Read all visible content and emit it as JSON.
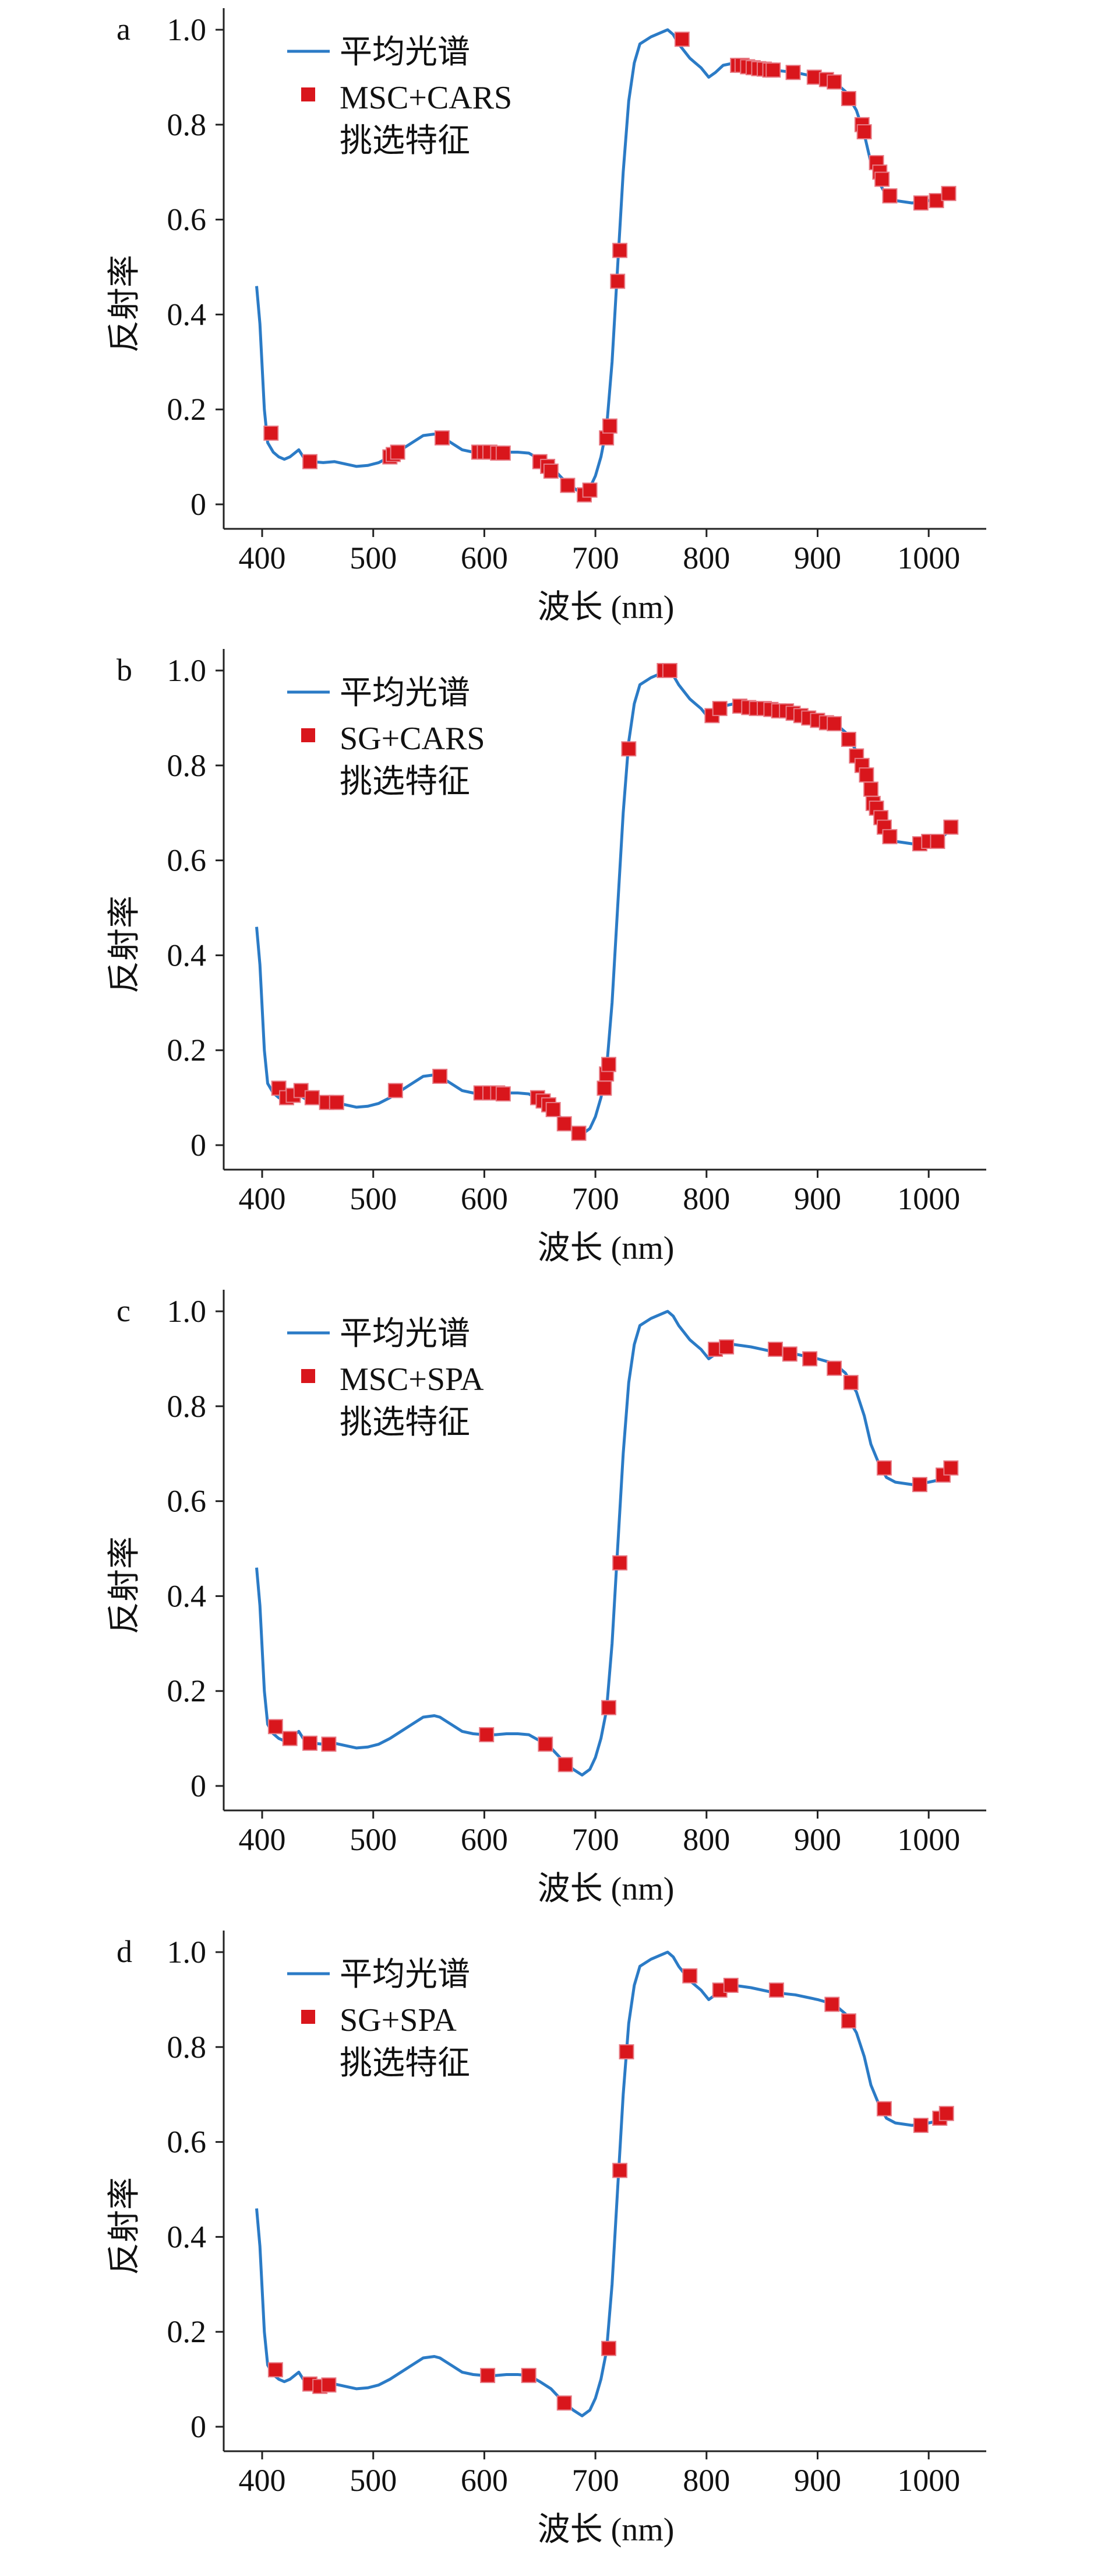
{
  "colors": {
    "mean_line": "#2b7bc6",
    "feature_marker": "#d9161c",
    "axis": "#222222"
  },
  "chart_data": [
    {
      "type": "line+scatter",
      "panel_label": "a",
      "xlabel": "波长 (nm)",
      "ylabel": "反射率",
      "xlim": [
        365,
        1050
      ],
      "ylim": [
        -0.03,
        1.06
      ],
      "x_ticks": [
        "400",
        "500",
        "600",
        "700",
        "800",
        "900",
        "1000"
      ],
      "y_ticks": [
        "0",
        "0.2",
        "0.4",
        "0.6",
        "0.8",
        "1.0"
      ],
      "legend": {
        "placement": "top-left",
        "entries": [
          "平均光谱",
          "MSC+CARS",
          "挑选特征"
        ]
      },
      "features": {
        "x": [
          408,
          443,
          515,
          518,
          522,
          562,
          595,
          600,
          605,
          612,
          617,
          650,
          657,
          660,
          675,
          690,
          695,
          710,
          713,
          720,
          722,
          778,
          828,
          832,
          837,
          842,
          847,
          852,
          857,
          860,
          878,
          897,
          908,
          915,
          928,
          940,
          942,
          953,
          956,
          958,
          965,
          993,
          1007,
          1018
        ],
        "y": [
          0.15,
          0.09,
          0.1,
          0.105,
          0.11,
          0.14,
          0.11,
          0.11,
          0.11,
          0.108,
          0.108,
          0.09,
          0.08,
          0.07,
          0.04,
          0.02,
          0.03,
          0.14,
          0.165,
          0.47,
          0.535,
          0.98,
          0.925,
          0.925,
          0.922,
          0.92,
          0.918,
          0.917,
          0.915,
          0.915,
          0.91,
          0.9,
          0.895,
          0.89,
          0.855,
          0.8,
          0.785,
          0.72,
          0.7,
          0.685,
          0.65,
          0.635,
          0.64,
          0.655
        ]
      }
    },
    {
      "type": "line+scatter",
      "panel_label": "b",
      "xlabel": "波长 (nm)",
      "ylabel": "反射率",
      "xlim": [
        365,
        1050
      ],
      "ylim": [
        -0.03,
        1.06
      ],
      "x_ticks": [
        "400",
        "500",
        "600",
        "700",
        "800",
        "900",
        "1000"
      ],
      "y_ticks": [
        "0",
        "0.2",
        "0.4",
        "0.6",
        "0.8",
        "1.0"
      ],
      "legend": {
        "placement": "top-left",
        "entries": [
          "平均光谱",
          "SG+CARS",
          "挑选特征"
        ]
      },
      "features": {
        "x": [
          415,
          422,
          428,
          435,
          445,
          458,
          467,
          520,
          560,
          597,
          605,
          612,
          617,
          648,
          653,
          658,
          662,
          672,
          685,
          708,
          710,
          712,
          730,
          762,
          767,
          805,
          812,
          830,
          838,
          845,
          852,
          858,
          865,
          872,
          878,
          885,
          892,
          900,
          908,
          915,
          928,
          935,
          940,
          944,
          948,
          950,
          953,
          957,
          960,
          965,
          992,
          1000,
          1008,
          1020
        ],
        "y": [
          0.12,
          0.1,
          0.105,
          0.115,
          0.1,
          0.09,
          0.09,
          0.115,
          0.145,
          0.11,
          0.11,
          0.11,
          0.108,
          0.1,
          0.093,
          0.085,
          0.075,
          0.045,
          0.025,
          0.12,
          0.15,
          0.17,
          0.835,
          1.0,
          1.0,
          0.905,
          0.92,
          0.925,
          0.922,
          0.92,
          0.92,
          0.918,
          0.915,
          0.915,
          0.91,
          0.905,
          0.9,
          0.895,
          0.89,
          0.888,
          0.855,
          0.82,
          0.8,
          0.78,
          0.75,
          0.72,
          0.71,
          0.69,
          0.67,
          0.65,
          0.635,
          0.64,
          0.64,
          0.67
        ]
      }
    },
    {
      "type": "line+scatter",
      "panel_label": "c",
      "xlabel": "波长 (nm)",
      "ylabel": "反射率",
      "xlim": [
        365,
        1050
      ],
      "ylim": [
        -0.03,
        1.06
      ],
      "x_ticks": [
        "400",
        "500",
        "600",
        "700",
        "800",
        "900",
        "1000"
      ],
      "y_ticks": [
        "0",
        "0.2",
        "0.4",
        "0.6",
        "0.8",
        "1.0"
      ],
      "legend": {
        "placement": "top-left",
        "entries": [
          "平均光谱",
          "MSC+SPA",
          "挑选特征"
        ]
      },
      "features": {
        "x": [
          412,
          425,
          443,
          460,
          602,
          655,
          673,
          712,
          722,
          808,
          818,
          862,
          875,
          893,
          915,
          930,
          960,
          992,
          1013,
          1020
        ],
        "y": [
          0.125,
          0.1,
          0.09,
          0.088,
          0.108,
          0.088,
          0.045,
          0.165,
          0.47,
          0.92,
          0.925,
          0.92,
          0.91,
          0.9,
          0.88,
          0.85,
          0.67,
          0.635,
          0.655,
          0.67
        ]
      }
    },
    {
      "type": "line+scatter",
      "panel_label": "d",
      "xlabel": "波长 (nm)",
      "ylabel": "反射率",
      "xlim": [
        365,
        1050
      ],
      "ylim": [
        -0.03,
        1.06
      ],
      "x_ticks": [
        "400",
        "500",
        "600",
        "700",
        "800",
        "900",
        "1000"
      ],
      "y_ticks": [
        "0",
        "0.2",
        "0.4",
        "0.6",
        "0.8",
        "1.0"
      ],
      "legend": {
        "placement": "top-left",
        "entries": [
          "平均光谱",
          "SG+SPA",
          "挑选特征"
        ]
      },
      "features": {
        "x": [
          412,
          443,
          452,
          460,
          603,
          640,
          672,
          712,
          722,
          728,
          785,
          812,
          822,
          863,
          913,
          928,
          960,
          993,
          1010,
          1016
        ],
        "y": [
          0.12,
          0.09,
          0.085,
          0.088,
          0.108,
          0.108,
          0.05,
          0.165,
          0.54,
          0.79,
          0.95,
          0.92,
          0.93,
          0.92,
          0.89,
          0.855,
          0.67,
          0.635,
          0.65,
          0.66
        ]
      }
    }
  ],
  "mean_spectrum": {
    "x": [
      395,
      398,
      402,
      405,
      410,
      415,
      420,
      425,
      433,
      437,
      445,
      455,
      465,
      475,
      485,
      495,
      505,
      515,
      525,
      535,
      545,
      555,
      560,
      570,
      580,
      590,
      600,
      610,
      620,
      630,
      640,
      650,
      660,
      670,
      680,
      688,
      695,
      700,
      705,
      710,
      715,
      720,
      725,
      730,
      735,
      740,
      750,
      760,
      765,
      770,
      775,
      785,
      790,
      795,
      802,
      808,
      815,
      825,
      840,
      860,
      880,
      900,
      915,
      925,
      935,
      942,
      948,
      955,
      962,
      970,
      985,
      1000,
      1010,
      1020
    ],
    "y": [
      0.46,
      0.38,
      0.2,
      0.13,
      0.11,
      0.1,
      0.095,
      0.1,
      0.115,
      0.1,
      0.09,
      0.088,
      0.09,
      0.085,
      0.08,
      0.082,
      0.088,
      0.1,
      0.115,
      0.13,
      0.145,
      0.148,
      0.145,
      0.13,
      0.115,
      0.11,
      0.108,
      0.108,
      0.11,
      0.11,
      0.108,
      0.095,
      0.08,
      0.055,
      0.035,
      0.023,
      0.035,
      0.06,
      0.1,
      0.16,
      0.3,
      0.5,
      0.7,
      0.85,
      0.93,
      0.97,
      0.985,
      0.995,
      1.0,
      0.99,
      0.97,
      0.94,
      0.93,
      0.92,
      0.9,
      0.91,
      0.925,
      0.93,
      0.925,
      0.915,
      0.91,
      0.9,
      0.89,
      0.87,
      0.83,
      0.78,
      0.72,
      0.68,
      0.65,
      0.64,
      0.635,
      0.64,
      0.645,
      0.665
    ]
  }
}
